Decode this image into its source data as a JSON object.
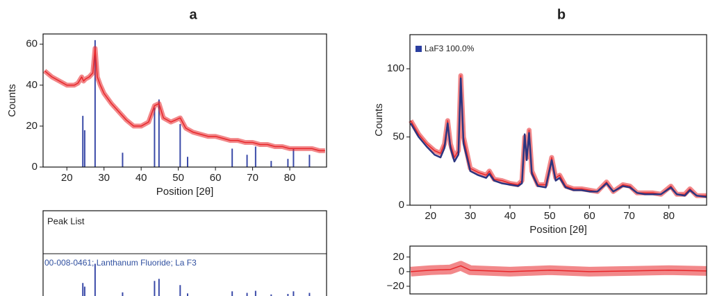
{
  "chart_data": [
    {
      "type": "line",
      "title": "a",
      "xlabel": "Position [2θ]",
      "ylabel": "Counts",
      "xlim": [
        13.6,
        89.9
      ],
      "ylim": [
        0,
        65
      ],
      "xticks": [
        20,
        30,
        40,
        50,
        60,
        70,
        80
      ],
      "yticks": [
        0,
        20,
        40,
        60
      ],
      "x": [
        14,
        16,
        18,
        20,
        22,
        23,
        24,
        24.5,
        25,
        26,
        27,
        27.6,
        28.2,
        29,
        30,
        32,
        34,
        36,
        38,
        40,
        42,
        43.6,
        44.8,
        46,
        48,
        50.5,
        52,
        54,
        56,
        58,
        60,
        62,
        64,
        66,
        68,
        70,
        72,
        74,
        76,
        78,
        80,
        82,
        84,
        86,
        88,
        89.5
      ],
      "values": [
        47,
        44,
        42,
        40,
        40,
        41,
        44,
        42,
        43,
        44,
        46,
        58,
        44,
        40,
        36,
        31,
        27,
        23,
        20,
        20,
        22,
        30,
        31,
        24,
        22,
        24,
        19,
        17,
        16,
        15,
        15,
        14,
        13,
        13,
        12,
        12,
        11,
        11,
        10,
        10,
        9,
        9,
        9,
        9,
        8,
        8
      ],
      "color": "#e8262a",
      "sticks": {
        "x": [
          24.3,
          24.8,
          27.6,
          35,
          43.6,
          44.8,
          50.5,
          52.5,
          64.5,
          68.5,
          70.8,
          75,
          79.5,
          81,
          85.3
        ],
        "values": [
          25,
          18,
          62,
          7,
          29,
          33,
          21,
          5,
          9,
          6,
          10,
          3,
          4,
          9,
          6
        ],
        "color": "#3a4aa8"
      },
      "peak_list": {
        "title": "Peak List",
        "reference": "00-008-0461; Lanthanum Fluoride; La F3"
      }
    },
    {
      "type": "line",
      "title": "b",
      "xlabel": "Position [2θ]",
      "ylabel": "Counts",
      "xlim": [
        14.8,
        89.5
      ],
      "ylim": [
        0,
        125
      ],
      "xticks": [
        20,
        30,
        40,
        50,
        60,
        70,
        80
      ],
      "yticks": [
        0,
        50,
        100
      ],
      "x": [
        15,
        17,
        19,
        21,
        22.5,
        23.5,
        24.3,
        25,
        26,
        27,
        27.6,
        28.3,
        30,
        32,
        34,
        34.8,
        36,
        38,
        40,
        42,
        43,
        43.7,
        44.2,
        44.8,
        45.5,
        47,
        49,
        50.5,
        51.5,
        52.5,
        54,
        56,
        58,
        60,
        62,
        64.3,
        66,
        68.4,
        70.2,
        72,
        74,
        76,
        78,
        80.5,
        82,
        84,
        85.3,
        87,
        89.5
      ],
      "series": [
        {
          "color": "#e8262a",
          "values": [
            62,
            52,
            45,
            40,
            38,
            45,
            62,
            45,
            35,
            40,
            95,
            50,
            27,
            24,
            22,
            25,
            19,
            18,
            16,
            15,
            18,
            50,
            35,
            55,
            25,
            15,
            15,
            35,
            20,
            22,
            14,
            12,
            12,
            11,
            10,
            17,
            10,
            15,
            14,
            9,
            9,
            9,
            8,
            14,
            8,
            8,
            12,
            7,
            7
          ]
        },
        {
          "name": "LaF3 100.0%",
          "color": "#2b3580",
          "values": [
            60,
            50,
            43,
            37,
            35,
            42,
            60,
            42,
            32,
            37,
            93,
            45,
            25,
            22,
            20,
            23,
            18,
            16,
            15,
            14,
            16,
            52,
            33,
            53,
            23,
            14,
            13,
            33,
            18,
            20,
            13,
            11,
            11,
            10,
            10,
            16,
            10,
            14,
            13,
            9,
            8,
            8,
            8,
            13,
            8,
            7,
            11,
            7,
            6
          ]
        }
      ],
      "legend": "upper left"
    },
    {
      "type": "line",
      "xlim": [
        14.8,
        89.5
      ],
      "ylim": [
        -30.5,
        35
      ],
      "yticks": [
        20,
        0,
        {
          "value": -20,
          "label": "−20"
        }
      ],
      "x": [
        15,
        20,
        25,
        27.6,
        30,
        40,
        50,
        60,
        70,
        80,
        89.5
      ],
      "values": [
        0,
        2,
        3,
        8,
        2,
        0,
        2,
        0,
        1,
        2,
        1
      ],
      "color": "#e8262a"
    }
  ]
}
